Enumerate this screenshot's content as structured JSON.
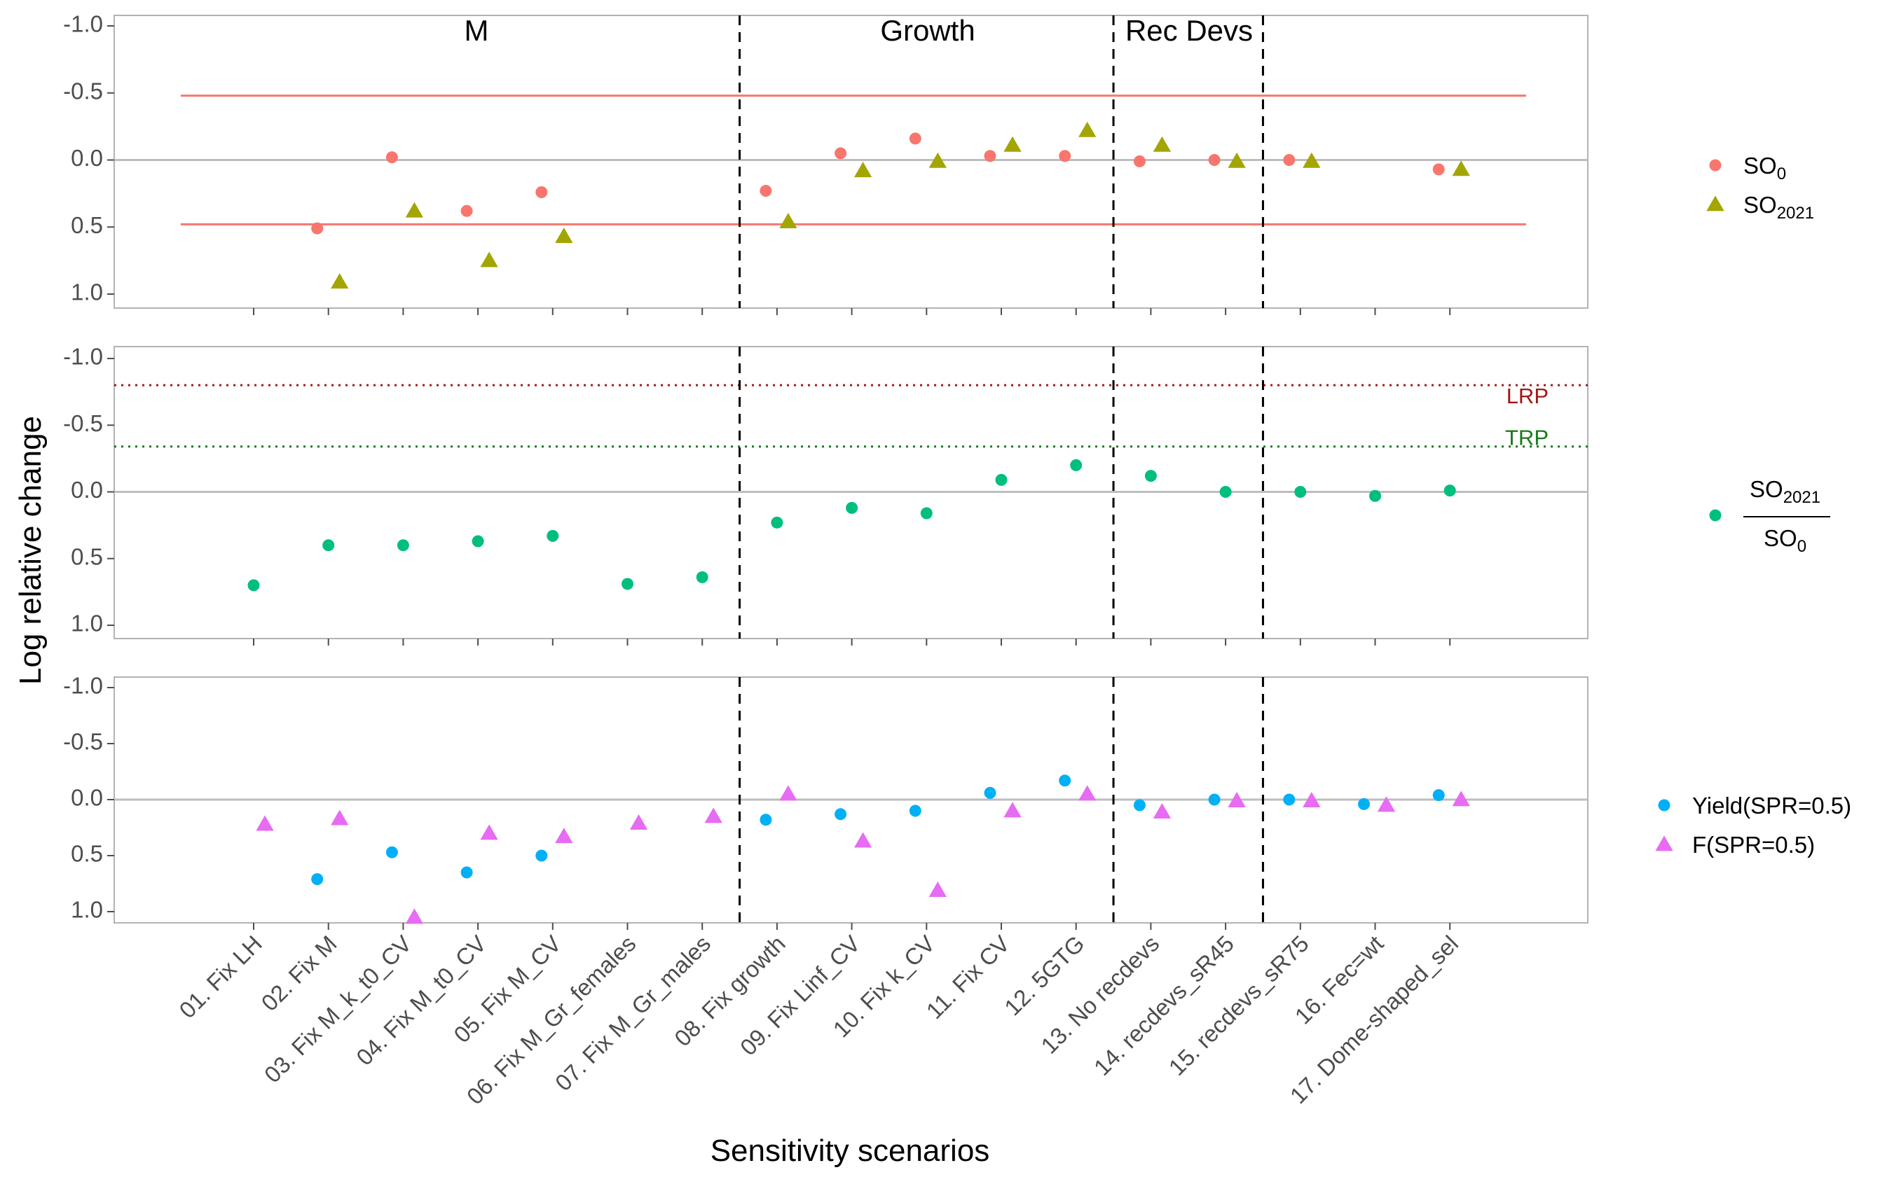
{
  "chart_data": {
    "type": "scatter",
    "xlabel": "Sensitivity scenarios",
    "ylabel": "Log relative change",
    "categories": [
      "01. Fix LH",
      "02. Fix M",
      "03. Fix M_k_t0_CV",
      "04. Fix M_t0_CV",
      "05. Fix M_CV",
      "06. Fix M_Gr_females",
      "07. Fix M_Gr_males",
      "08. Fix growth",
      "09. Fix Linf_CV",
      "10. Fix k_CV",
      "11. Fix CV",
      "12. 5GTG",
      "13. No recdevs",
      "14. recdevs_sR45",
      "15. recdevs_sR75",
      "16. Fec=wt",
      "17. Dome-shaped_sel"
    ],
    "group_labels": [
      {
        "text": "M",
        "after_index": 2
      },
      {
        "text": "Growth",
        "after_index": 9
      },
      {
        "text": "Rec Devs",
        "after_index": 12
      }
    ],
    "group_dividers_after": [
      7,
      12,
      14
    ],
    "yticks": [
      "1.0",
      "0.5",
      "0.0",
      "-0.5",
      "-1.0"
    ],
    "ylim": [
      -1.05,
      1.15
    ],
    "grid": false,
    "legend_position": "right",
    "panels": [
      {
        "name": "top",
        "box": {
          "ymin": -0.85,
          "ymax": 0.85,
          "color": "#A3A500"
        },
        "hlines": [
          {
            "y": 0.48,
            "color": "#F8766D"
          },
          {
            "y": -0.48,
            "color": "#F8766D"
          }
        ],
        "series": [
          {
            "name": "SO_0",
            "legend_main": "SO",
            "legend_sub": "0",
            "shape": "circle",
            "color": "#F8766D",
            "offset": -0.15,
            "values": [
              null,
              0.51,
              -0.02,
              0.38,
              0.24,
              null,
              null,
              0.23,
              -0.05,
              -0.16,
              -0.03,
              -0.03,
              0.01,
              0.0,
              0.0,
              null,
              0.07
            ]
          },
          {
            "name": "SO_2021",
            "legend_main": "SO",
            "legend_sub": "2021",
            "shape": "triangle",
            "color": "#A3A500",
            "offset": 0.15,
            "values": [
              null,
              0.91,
              0.38,
              0.75,
              0.57,
              null,
              null,
              0.46,
              0.08,
              0.01,
              -0.11,
              -0.22,
              -0.11,
              0.01,
              0.01,
              null,
              0.07
            ]
          }
        ]
      },
      {
        "name": "middle",
        "box": {
          "ymin": -0.57,
          "ymax": 0.57,
          "color": "#00BF7D"
        },
        "reference_lines": [
          {
            "label": "TRP",
            "y": -0.34,
            "color": "#1a7a1a"
          },
          {
            "label": "LRP",
            "y": -0.8,
            "color": "#a01818"
          }
        ],
        "series": [
          {
            "name": "SO_2021 / SO_0",
            "legend_numerator": "SO",
            "legend_numerator_sub": "2021",
            "legend_denominator": "SO",
            "legend_denominator_sub": "0",
            "shape": "circle",
            "color": "#00BF7D",
            "offset": 0,
            "values": [
              0.7,
              0.4,
              0.4,
              0.37,
              0.33,
              0.69,
              0.64,
              0.23,
              0.12,
              0.16,
              -0.09,
              -0.2,
              -0.12,
              0.0,
              0.0,
              0.03,
              -0.01
            ]
          }
        ]
      },
      {
        "name": "bottom",
        "boxes": [
          {
            "ymin": -0.58,
            "ymax": 0.58,
            "color": "#00B0F6"
          },
          {
            "ymin": -0.23,
            "ymax": 0.23,
            "color": "#E76BF3"
          }
        ],
        "series": [
          {
            "name": "Yield(SPR=0.5)",
            "shape": "circle",
            "color": "#00B0F6",
            "offset": -0.15,
            "values": [
              null,
              0.71,
              0.47,
              0.65,
              0.5,
              null,
              null,
              0.18,
              0.13,
              0.1,
              -0.06,
              -0.17,
              0.05,
              0.0,
              0.0,
              0.04,
              -0.04
            ]
          },
          {
            "name": "F(SPR=0.5)",
            "shape": "triangle",
            "color": "#E76BF3",
            "offset": 0.15,
            "values": [
              0.22,
              0.17,
              1.05,
              0.3,
              0.33,
              0.21,
              0.15,
              -0.05,
              0.37,
              0.81,
              0.1,
              -0.05,
              0.11,
              0.01,
              0.01,
              0.05,
              0.0
            ]
          }
        ]
      }
    ]
  }
}
